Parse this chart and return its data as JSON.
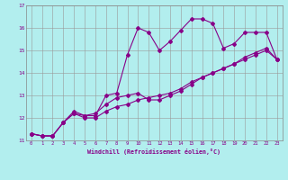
{
  "xlabel": "Windchill (Refroidissement éolien,°C)",
  "x_hours": [
    0,
    1,
    2,
    3,
    4,
    5,
    6,
    7,
    8,
    9,
    10,
    11,
    12,
    13,
    14,
    15,
    16,
    17,
    18,
    19,
    20,
    21,
    22,
    23
  ],
  "line1": [
    11.3,
    11.2,
    11.2,
    11.8,
    12.3,
    12.1,
    12.1,
    13.0,
    13.1,
    14.8,
    16.0,
    15.8,
    15.0,
    15.4,
    15.9,
    16.4,
    16.4,
    16.2,
    15.1,
    15.3,
    15.8,
    15.8,
    15.8,
    14.6
  ],
  "line2": [
    11.3,
    11.2,
    11.2,
    11.8,
    12.2,
    12.1,
    12.2,
    12.6,
    12.9,
    13.0,
    13.1,
    12.8,
    12.8,
    13.0,
    13.2,
    13.5,
    13.8,
    14.0,
    14.2,
    14.4,
    14.6,
    14.8,
    15.0,
    14.6
  ],
  "line3": [
    11.3,
    11.2,
    11.2,
    11.8,
    12.2,
    12.0,
    12.0,
    12.3,
    12.5,
    12.6,
    12.8,
    12.9,
    13.0,
    13.1,
    13.3,
    13.6,
    13.8,
    14.0,
    14.2,
    14.4,
    14.7,
    14.9,
    15.1,
    14.6
  ],
  "line_color": "#880088",
  "bg_color": "#b2eeee",
  "grid_color": "#999999",
  "ylim": [
    11,
    17
  ],
  "yticks": [
    11,
    12,
    13,
    14,
    15,
    16,
    17
  ],
  "marker": "D",
  "markersize": 2.0,
  "linewidth": 0.8
}
